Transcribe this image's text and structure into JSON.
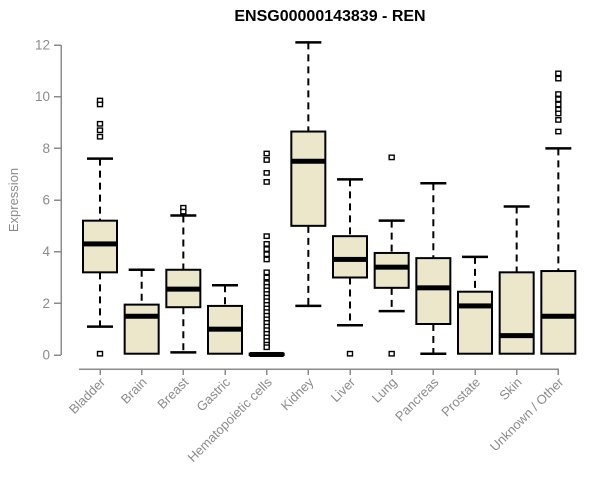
{
  "title": "ENSG00000143839 - REN",
  "colors": {
    "box_fill": "#ECE7CB",
    "box_border": "#000000",
    "median": "#000000",
    "axis_gray": "#8B8B8B",
    "label_gray": "#8B8B8B",
    "title_color": "#000000",
    "background": "#FFFFFF",
    "outlier_fill": "#FFFFFF"
  },
  "chart_data": {
    "type": "boxplot",
    "title": "ENSG00000143839 - REN",
    "xlabel": "",
    "ylabel": "Expression",
    "ylim": [
      0,
      12
    ],
    "yticks": [
      0,
      2,
      4,
      6,
      8,
      10,
      12
    ],
    "grid": false,
    "legend": false,
    "outlier_marker": "open-square",
    "whisker_style": "dashed",
    "categories": [
      "Bladder",
      "Brain",
      "Breast",
      "Gastric",
      "Hematopoietic cells",
      "Kidney",
      "Liver",
      "Lung",
      "Pancreas",
      "Prostate",
      "Skin",
      "Unknown / Other"
    ],
    "series": [
      {
        "name": "Bladder",
        "low": 1.1,
        "q1": 3.2,
        "median": 4.3,
        "q3": 5.2,
        "high": 7.6,
        "outliers": [
          9.85,
          9.7,
          8.95,
          8.7,
          8.45,
          0.05
        ]
      },
      {
        "name": "Brain",
        "low": 0.05,
        "q1": 0.05,
        "median": 1.5,
        "q3": 1.95,
        "high": 3.3,
        "outliers": []
      },
      {
        "name": "Breast",
        "low": 0.1,
        "q1": 1.85,
        "median": 2.55,
        "q3": 3.3,
        "high": 5.4,
        "outliers": [
          5.7,
          5.55
        ]
      },
      {
        "name": "Gastric",
        "low": 0.05,
        "q1": 0.05,
        "median": 1.0,
        "q3": 1.9,
        "high": 2.7,
        "outliers": []
      },
      {
        "name": "Hematopoietic cells",
        "low": 0.0,
        "q1": 0.0,
        "median": 0.02,
        "q3": 0.05,
        "high": 0.05,
        "outliers": [
          7.8,
          7.55,
          7.05,
          6.7,
          4.6,
          4.3,
          4.1,
          3.9,
          3.7,
          3.2,
          3.0,
          2.78,
          2.64,
          2.5,
          2.36,
          2.22,
          2.08,
          1.94,
          1.8,
          1.66,
          1.52,
          1.38,
          1.24,
          1.1,
          0.96,
          0.82,
          0.68,
          0.54,
          0.4,
          0.3
        ]
      },
      {
        "name": "Kidney",
        "low": 1.9,
        "q1": 5.0,
        "median": 7.5,
        "q3": 8.65,
        "high": 12.1,
        "outliers": []
      },
      {
        "name": "Liver",
        "low": 1.15,
        "q1": 3.0,
        "median": 3.7,
        "q3": 4.6,
        "high": 6.8,
        "outliers": [
          0.05
        ]
      },
      {
        "name": "Lung",
        "low": 1.7,
        "q1": 2.6,
        "median": 3.4,
        "q3": 3.95,
        "high": 5.2,
        "outliers": [
          7.65,
          0.05
        ]
      },
      {
        "name": "Pancreas",
        "low": 0.05,
        "q1": 1.2,
        "median": 2.6,
        "q3": 3.75,
        "high": 6.65,
        "outliers": []
      },
      {
        "name": "Prostate",
        "low": 0.05,
        "q1": 0.05,
        "median": 1.9,
        "q3": 2.45,
        "high": 3.8,
        "outliers": []
      },
      {
        "name": "Skin",
        "low": 0.05,
        "q1": 0.05,
        "median": 0.75,
        "q3": 3.2,
        "high": 5.75,
        "outliers": []
      },
      {
        "name": "Unknown / Other",
        "low": 0.05,
        "q1": 0.05,
        "median": 1.5,
        "q3": 3.25,
        "high": 8.0,
        "outliers": [
          10.9,
          10.7,
          10.1,
          9.9,
          9.7,
          9.5,
          9.35,
          9.1,
          8.65
        ]
      }
    ]
  }
}
